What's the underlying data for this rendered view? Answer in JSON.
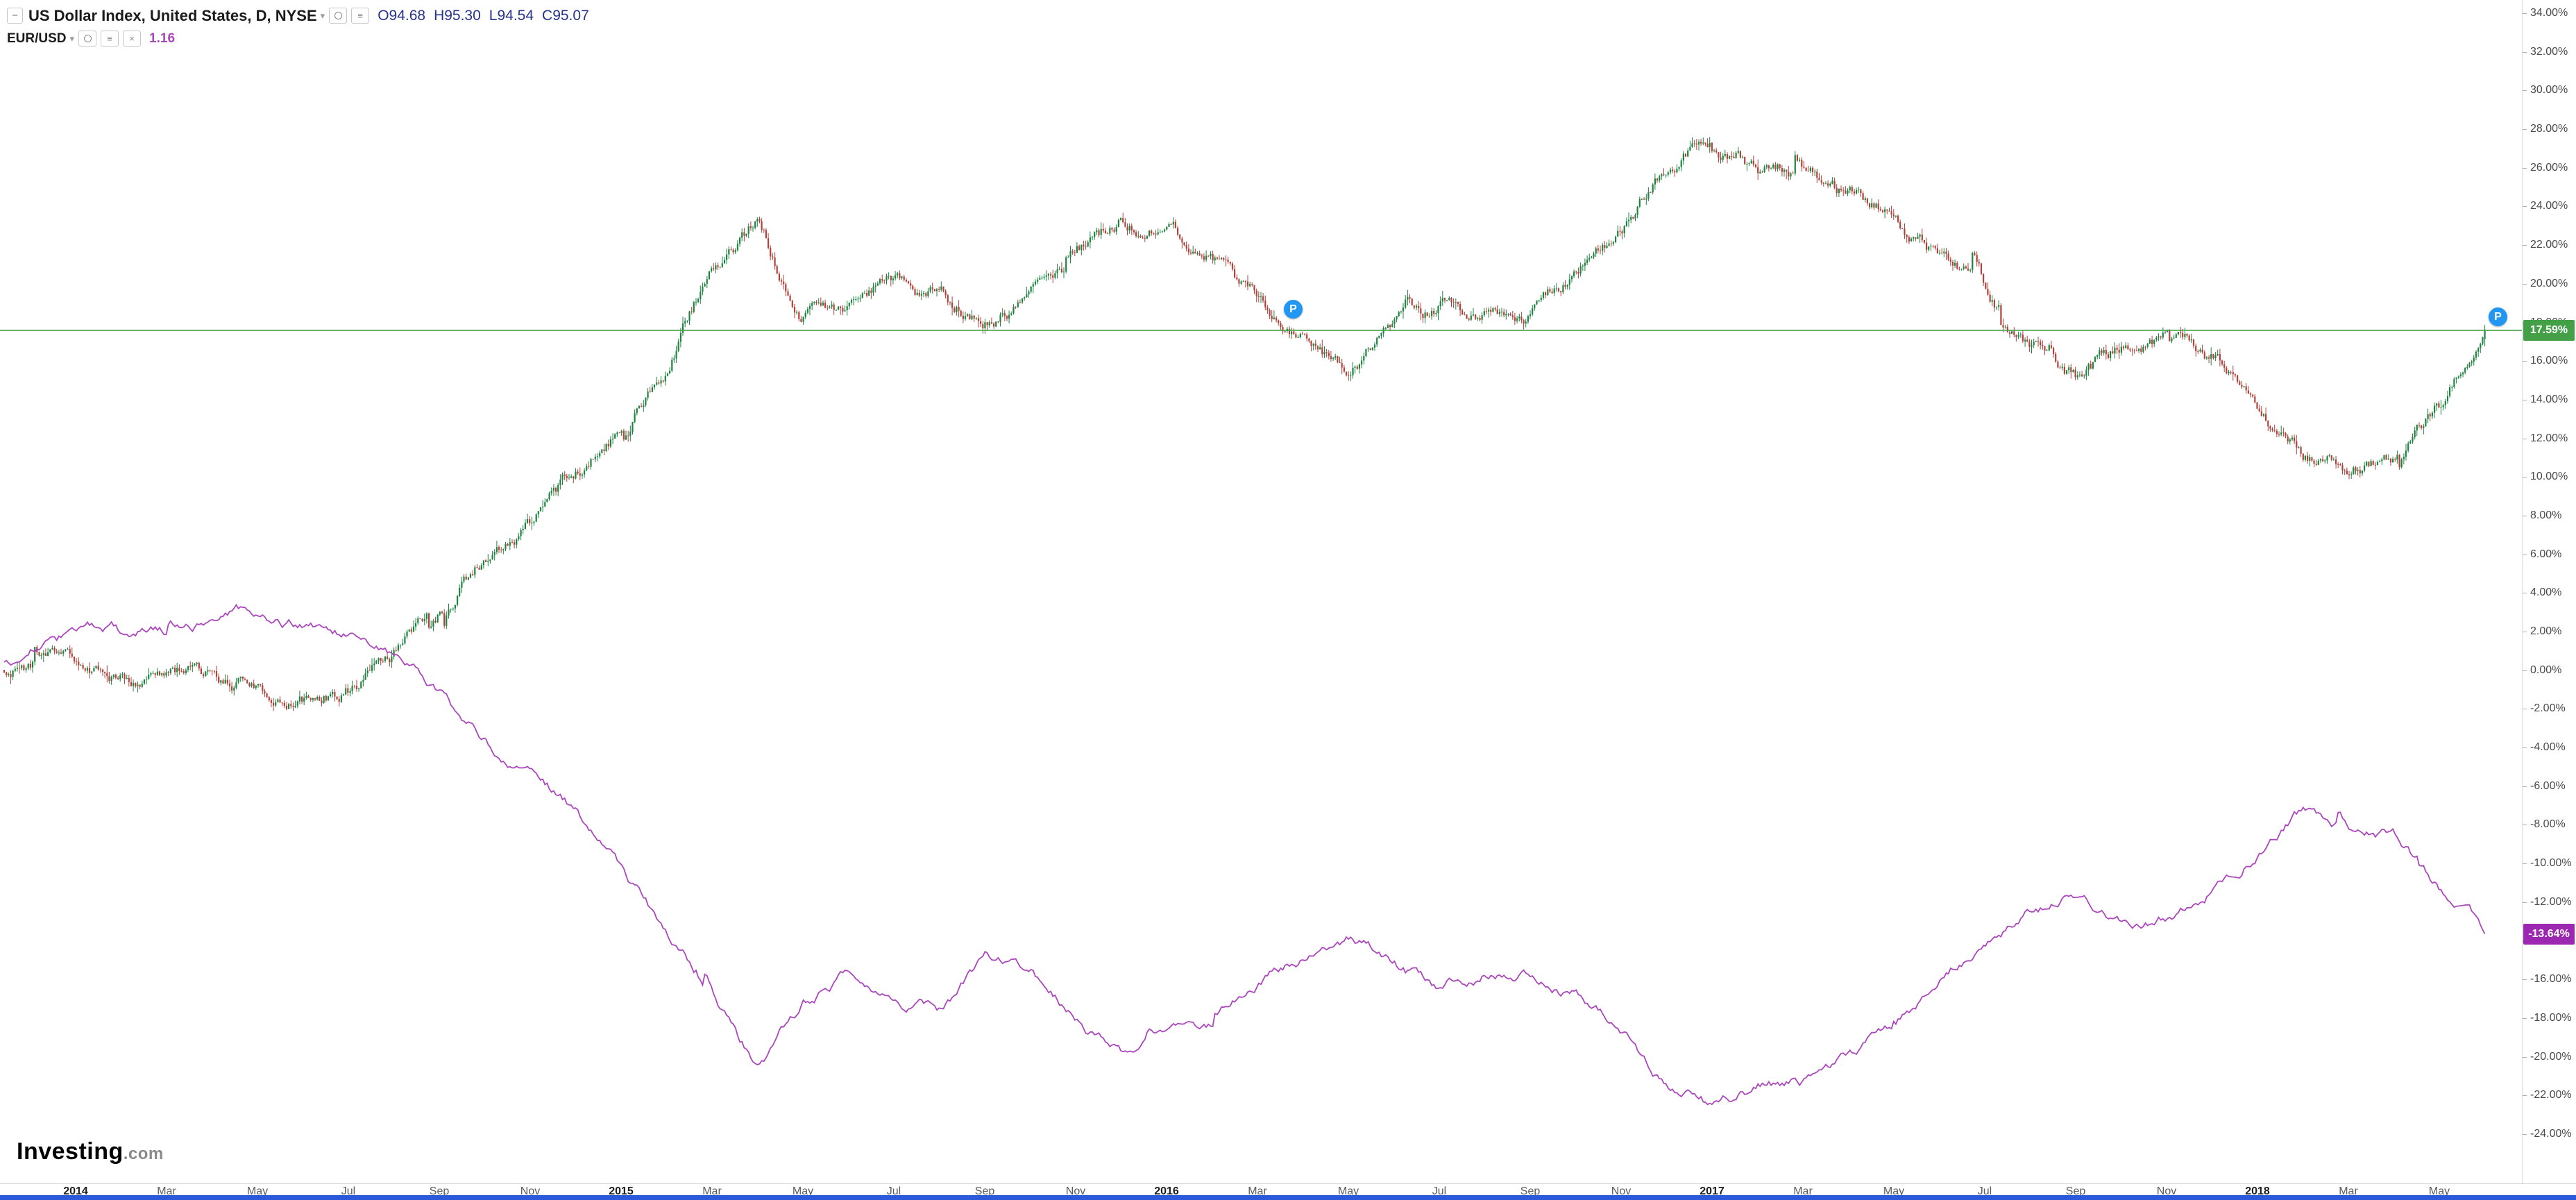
{
  "header": {
    "symbol_title": "US Dollar Index, United States, D, NYSE",
    "ohlc": [
      "O94.68",
      "H95.30",
      "L94.54",
      "C95.07"
    ],
    "overlay_symbol": "EUR/USD",
    "overlay_value": "1.16"
  },
  "icons": {
    "collapse": "−",
    "caret": "▾",
    "settings": "≡",
    "close": "×"
  },
  "price_tags": {
    "main": "17.59%",
    "overlay": "-13.64%"
  },
  "markers": [
    {
      "label": "P",
      "date": "2016-03-25",
      "pct": 18.7
    },
    {
      "label": "P",
      "date": "2018-06-10",
      "pct": 18.3
    }
  ],
  "footer": {
    "logo_main": "Investing",
    "logo_suffix": ".com"
  },
  "colors": {
    "candle_up": "#1d8440",
    "candle_down": "#b0423a",
    "eur_line": "#ab47bc",
    "price_line": "#43a047",
    "tag_main_bg": "#43a047",
    "tag_overlay_bg": "#9c27b0",
    "ohlc_text": "#26328c",
    "overlay_value_text": "#ab47bc",
    "marker_bg": "#2196f3",
    "scrollbar": "#2a5ada"
  },
  "chart_data": {
    "type": "candlestick+line",
    "title": "US Dollar Index (daily candles) vs EUR/USD (line), percent change since late 2013",
    "legend_position": "top-left",
    "grid": false,
    "y_axis": {
      "min": -24,
      "max": 34,
      "step": 2,
      "format": "percent",
      "side": "right"
    },
    "x_axis": {
      "tick_labels": [
        "2014",
        "Mar",
        "May",
        "Jul",
        "Sep",
        "Nov",
        "2015",
        "Mar",
        "May",
        "Jul",
        "Sep",
        "Nov",
        "2016",
        "Mar",
        "May",
        "Jul",
        "Sep",
        "Nov",
        "2017",
        "Mar",
        "May",
        "Jul",
        "Sep",
        "Nov",
        "2018",
        "Mar",
        "May"
      ],
      "months_per_tick": 2,
      "start_label_month": "2014-01"
    },
    "last_bar_ohlc": {
      "open": 94.68,
      "high": 95.3,
      "low": 94.54,
      "close": 95.07
    },
    "overlay_last_price": 1.16,
    "series": [
      {
        "name": "US Dollar Index",
        "type": "candlestick",
        "unit": "% change",
        "last_value_pct": 17.59,
        "monthly_pct": [
          [
            "2013-11",
            0.0
          ],
          [
            "2013-12",
            0.3
          ],
          [
            "2014-01",
            0.5
          ],
          [
            "2014-02",
            -0.6
          ],
          [
            "2014-03",
            0.3
          ],
          [
            "2014-04",
            -0.4
          ],
          [
            "2014-05",
            -0.9
          ],
          [
            "2014-06",
            -1.3
          ],
          [
            "2014-07",
            -1.0
          ],
          [
            "2014-08",
            0.8
          ],
          [
            "2014-09",
            3.2
          ],
          [
            "2014-10",
            5.8
          ],
          [
            "2014-11",
            7.5
          ],
          [
            "2014-12",
            10.0
          ],
          [
            "2015-01",
            12.5
          ],
          [
            "2015-02",
            15.5
          ],
          [
            "2015-03",
            21.0
          ],
          [
            "2015-04",
            23.2
          ],
          [
            "2015-05",
            18.2
          ],
          [
            "2015-06",
            18.8
          ],
          [
            "2015-07",
            20.2
          ],
          [
            "2015-08",
            19.3
          ],
          [
            "2015-09",
            18.2
          ],
          [
            "2015-10",
            19.3
          ],
          [
            "2015-11",
            21.5
          ],
          [
            "2015-12",
            23.3
          ],
          [
            "2016-01",
            22.8
          ],
          [
            "2016-02",
            21.3
          ],
          [
            "2016-03",
            19.3
          ],
          [
            "2016-04",
            17.3
          ],
          [
            "2016-05",
            15.2
          ],
          [
            "2016-06",
            17.8
          ],
          [
            "2016-07",
            18.8
          ],
          [
            "2016-08",
            18.2
          ],
          [
            "2016-09",
            18.6
          ],
          [
            "2016-10",
            20.5
          ],
          [
            "2016-11",
            22.8
          ],
          [
            "2016-12",
            26.2
          ],
          [
            "2017-01",
            27.6
          ],
          [
            "2017-02",
            25.6
          ],
          [
            "2017-03",
            26.0
          ],
          [
            "2017-04",
            24.6
          ],
          [
            "2017-05",
            23.6
          ],
          [
            "2017-06",
            21.2
          ],
          [
            "2017-07",
            19.4
          ],
          [
            "2017-08",
            16.8
          ],
          [
            "2017-09",
            15.0
          ],
          [
            "2017-10",
            16.6
          ],
          [
            "2017-11",
            17.4
          ],
          [
            "2017-12",
            16.2
          ],
          [
            "2018-01",
            14.0
          ],
          [
            "2018-02",
            11.0
          ],
          [
            "2018-03",
            10.6
          ],
          [
            "2018-04",
            11.2
          ],
          [
            "2018-05",
            13.6
          ],
          [
            "2018-06",
            17.59
          ]
        ]
      },
      {
        "name": "EUR/USD",
        "type": "line",
        "unit": "% change",
        "last_value_pct": -13.64,
        "monthly_pct": [
          [
            "2013-11",
            0.0
          ],
          [
            "2013-12",
            1.2
          ],
          [
            "2014-01",
            1.8
          ],
          [
            "2014-02",
            2.2
          ],
          [
            "2014-03",
            2.0
          ],
          [
            "2014-04",
            2.6
          ],
          [
            "2014-05",
            3.1
          ],
          [
            "2014-06",
            2.3
          ],
          [
            "2014-07",
            1.8
          ],
          [
            "2014-08",
            0.8
          ],
          [
            "2014-09",
            -1.2
          ],
          [
            "2014-10",
            -3.6
          ],
          [
            "2014-11",
            -5.4
          ],
          [
            "2014-12",
            -7.4
          ],
          [
            "2015-01",
            -10.2
          ],
          [
            "2015-02",
            -13.6
          ],
          [
            "2015-03",
            -17.0
          ],
          [
            "2015-04",
            -20.6
          ],
          [
            "2015-05",
            -17.2
          ],
          [
            "2015-06",
            -15.6
          ],
          [
            "2015-07",
            -17.0
          ],
          [
            "2015-08",
            -17.6
          ],
          [
            "2015-09",
            -14.8
          ],
          [
            "2015-10",
            -15.6
          ],
          [
            "2015-11",
            -17.8
          ],
          [
            "2015-12",
            -20.0
          ],
          [
            "2016-01",
            -18.6
          ],
          [
            "2016-02",
            -18.2
          ],
          [
            "2016-03",
            -16.2
          ],
          [
            "2016-04",
            -14.8
          ],
          [
            "2016-05",
            -13.8
          ],
          [
            "2016-06",
            -15.2
          ],
          [
            "2016-07",
            -16.6
          ],
          [
            "2016-08",
            -15.6
          ],
          [
            "2016-09",
            -15.6
          ],
          [
            "2016-10",
            -16.6
          ],
          [
            "2016-11",
            -18.6
          ],
          [
            "2016-12",
            -21.4
          ],
          [
            "2017-01",
            -22.6
          ],
          [
            "2017-02",
            -21.6
          ],
          [
            "2017-03",
            -21.4
          ],
          [
            "2017-04",
            -20.0
          ],
          [
            "2017-05",
            -18.4
          ],
          [
            "2017-06",
            -16.0
          ],
          [
            "2017-07",
            -14.0
          ],
          [
            "2017-08",
            -12.2
          ],
          [
            "2017-09",
            -11.6
          ],
          [
            "2017-10",
            -13.0
          ],
          [
            "2017-11",
            -12.6
          ],
          [
            "2017-12",
            -11.2
          ],
          [
            "2018-01",
            -9.2
          ],
          [
            "2018-02",
            -7.2
          ],
          [
            "2018-03",
            -8.2
          ],
          [
            "2018-04",
            -8.6
          ],
          [
            "2018-05",
            -11.2
          ],
          [
            "2018-06",
            -13.64
          ]
        ]
      }
    ]
  }
}
